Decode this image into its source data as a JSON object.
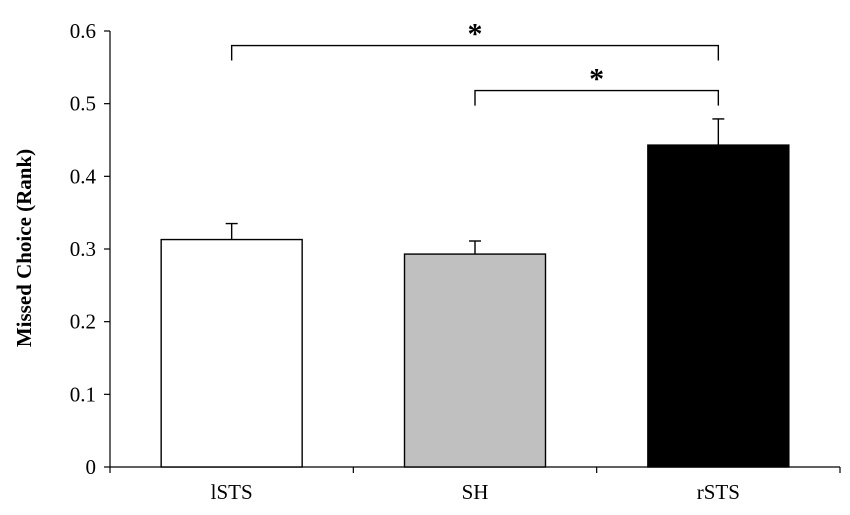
{
  "chart_data": {
    "type": "bar",
    "categories": [
      "lSTS",
      "SH",
      "rSTS"
    ],
    "values": [
      0.313,
      0.293,
      0.443
    ],
    "errors": [
      0.022,
      0.018,
      0.036
    ],
    "bar_colors": [
      "#ffffff",
      "#c0c0c0",
      "#000000"
    ],
    "title": "",
    "xlabel": "",
    "ylabel": "Missed Choice (Rank)",
    "ylim": [
      0,
      0.6
    ],
    "yticks": [
      0,
      0.1,
      0.2,
      0.3,
      0.4,
      0.5,
      0.6
    ],
    "ytick_labels": [
      "0",
      "0.1",
      "0.2",
      "0.3",
      "0.4",
      "0.5",
      "0.6"
    ],
    "grid": false,
    "significance": [
      {
        "from": "lSTS",
        "to": "rSTS",
        "label": "*",
        "level": 0.58
      },
      {
        "from": "SH",
        "to": "rSTS",
        "label": "*",
        "level": 0.518
      }
    ]
  }
}
